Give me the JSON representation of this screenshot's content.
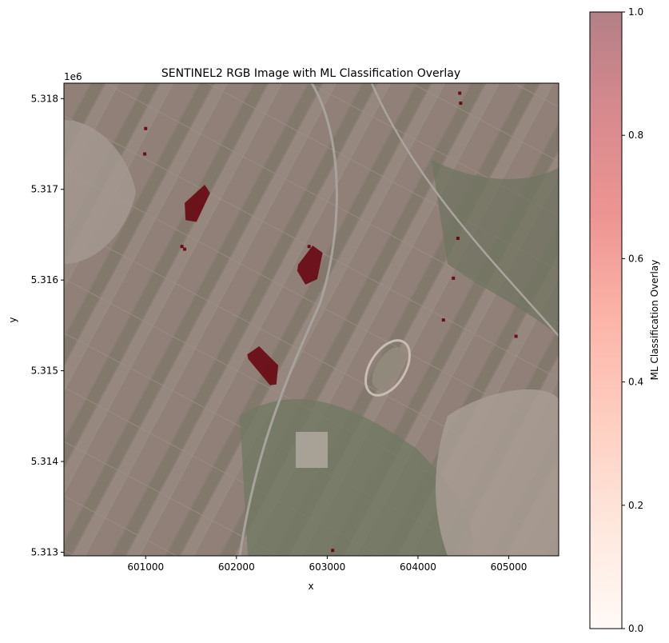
{
  "chart_data": {
    "type": "heatmap",
    "title": "SENTINEL2 RGB Image with ML Classification Overlay",
    "xlabel": "x",
    "ylabel": "y",
    "y_offset_label": "1e6",
    "xlim": [
      600100,
      605550
    ],
    "ylim": [
      5312960,
      5318170
    ],
    "x_ticks": [
      601000,
      602000,
      603000,
      604000,
      605000
    ],
    "x_tick_labels": [
      "601000",
      "602000",
      "603000",
      "604000",
      "605000"
    ],
    "y_ticks": [
      5313000,
      5314000,
      5315000,
      5316000,
      5317000,
      5318000
    ],
    "y_tick_labels": [
      "5.313",
      "5.314",
      "5.315",
      "5.316",
      "5.317",
      "5.318"
    ],
    "colorbar": {
      "label": "ML Classification Overlay",
      "range": [
        0,
        1
      ],
      "ticks": [
        0.0,
        0.2,
        0.4,
        0.6,
        0.8,
        1.0
      ],
      "tick_labels": [
        "0.0",
        "0.2",
        "0.4",
        "0.6",
        "0.8",
        "1.0"
      ],
      "colormap": "Reds",
      "colors": [
        "#fff5f0",
        "#fdd0bb",
        "#fc9f82",
        "#f96b52",
        "#dc2b25",
        "#b0151d",
        "#67000d"
      ],
      "alpha": 0.5
    },
    "classified_patches": [
      {
        "name": "patch-1",
        "x": [
          601430,
          601650,
          601710,
          601560,
          601440
        ],
        "y": [
          5316850,
          5317050,
          5316960,
          5316640,
          5316660
        ],
        "value": 1
      },
      {
        "name": "patch-2",
        "x": [
          602680,
          602840,
          602950,
          602890,
          602760,
          602670
        ],
        "y": [
          5316170,
          5316380,
          5316300,
          5316010,
          5315950,
          5316100
        ],
        "value": 1
      },
      {
        "name": "patch-3",
        "x": [
          602120,
          602250,
          602460,
          602440,
          602370,
          602130
        ],
        "y": [
          5315180,
          5315270,
          5315060,
          5314850,
          5314840,
          5315130
        ],
        "value": 1
      },
      {
        "name": "speck-1",
        "x": [
          600990
        ],
        "y": [
          5317390
        ],
        "value": 1
      },
      {
        "name": "speck-2",
        "x": [
          601000
        ],
        "y": [
          5317670
        ],
        "value": 1
      },
      {
        "name": "speck-3",
        "x": [
          601400
        ],
        "y": [
          5316370
        ],
        "value": 1
      },
      {
        "name": "speck-4",
        "x": [
          601430
        ],
        "y": [
          5316340
        ],
        "value": 1
      },
      {
        "name": "speck-5",
        "x": [
          604460
        ],
        "y": [
          5318060
        ],
        "value": 1
      },
      {
        "name": "speck-6",
        "x": [
          604470
        ],
        "y": [
          5317950
        ],
        "value": 1
      },
      {
        "name": "speck-7",
        "x": [
          604440
        ],
        "y": [
          5316460
        ],
        "value": 1
      },
      {
        "name": "speck-8",
        "x": [
          604390
        ],
        "y": [
          5316020
        ],
        "value": 1
      },
      {
        "name": "speck-9",
        "x": [
          604280
        ],
        "y": [
          5315560
        ],
        "value": 1
      },
      {
        "name": "speck-10",
        "x": [
          605080
        ],
        "y": [
          5315380
        ],
        "value": 1
      },
      {
        "name": "speck-11",
        "x": [
          602800
        ],
        "y": [
          5316370
        ],
        "value": 1
      },
      {
        "name": "speck-12",
        "x": [
          603060
        ],
        "y": [
          5313020
        ],
        "value": 1
      }
    ]
  }
}
